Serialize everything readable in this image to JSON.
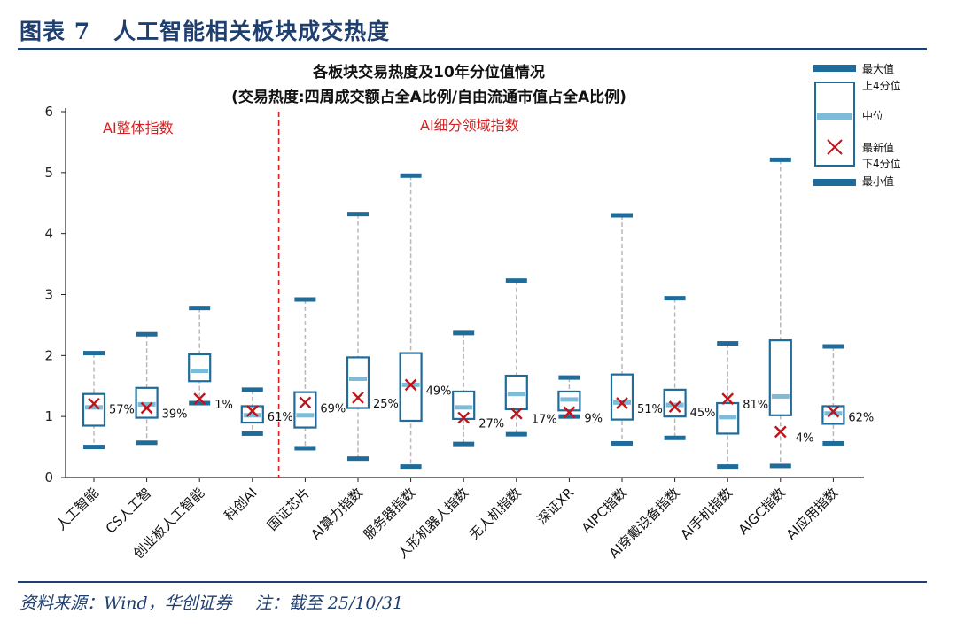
{
  "figure_title": "图表 7　人工智能相关板块成交热度",
  "source": "资料来源：Wind，华创证券",
  "note": "注：截至 25/10/31",
  "colors": {
    "header": "#1f3f70",
    "box": "#1f6b99",
    "whisker": "#b8b8b8",
    "median": "#7dbbd8",
    "marker": "#c0141c",
    "divider": "#d81e1e",
    "section_label": "#d81e1e"
  },
  "chart_data": {
    "type": "boxplot",
    "title_line1": "各板块交易热度及10年分位值情况",
    "title_line2": "(交易热度:四周成交额占全A比例/自由流通市值占全A比例)",
    "ylim": [
      0,
      6
    ],
    "yticks": [
      0,
      1,
      2,
      3,
      4,
      5,
      6
    ],
    "section_labels": [
      "AI整体指数",
      "AI细分领域指数"
    ],
    "divider_after_index": 3,
    "legend": {
      "max": "最大值",
      "q3": "上4分位",
      "median": "中位",
      "latest": "最新值",
      "q1": "下4分位",
      "min": "最小值"
    },
    "categories": [
      "人工智能",
      "CS人工智",
      "创业板人工智能",
      "科创AI",
      "国证芯片",
      "AI算力指数",
      "服务器指数",
      "人形机器人指数",
      "无人机指数",
      "深证XR",
      "AIPC指数",
      "AI穿戴设备指数",
      "AI手机指数",
      "AIGC指数",
      "AI应用指数"
    ],
    "min": [
      0.5,
      0.57,
      1.22,
      0.72,
      0.48,
      0.31,
      0.18,
      0.55,
      0.71,
      1.0,
      0.56,
      0.65,
      0.18,
      0.19,
      0.56
    ],
    "q1": [
      0.85,
      0.98,
      1.58,
      0.9,
      0.82,
      1.14,
      0.93,
      0.96,
      1.12,
      1.1,
      0.95,
      1.0,
      0.72,
      1.02,
      0.88
    ],
    "median": [
      1.15,
      1.2,
      1.75,
      1.02,
      1.02,
      1.62,
      1.52,
      1.15,
      1.37,
      1.28,
      1.23,
      1.19,
      0.99,
      1.33,
      1.05
    ],
    "q3": [
      1.37,
      1.47,
      2.02,
      1.17,
      1.4,
      1.97,
      2.04,
      1.41,
      1.67,
      1.41,
      1.69,
      1.44,
      1.22,
      2.25,
      1.17
    ],
    "max": [
      2.04,
      2.35,
      2.78,
      1.44,
      2.92,
      4.32,
      4.95,
      2.37,
      3.23,
      1.64,
      4.3,
      2.94,
      2.2,
      5.21,
      2.15
    ],
    "latest": [
      1.21,
      1.14,
      1.29,
      1.09,
      1.23,
      1.31,
      1.52,
      0.98,
      1.05,
      1.07,
      1.22,
      1.16,
      1.29,
      0.75,
      1.08
    ],
    "percentile_labels": [
      "57%",
      "39%",
      "1%",
      "61%",
      "69%",
      "25%",
      "49%",
      "27%",
      "17%",
      "9%",
      "51%",
      "45%",
      "81%",
      "4%",
      "62%"
    ]
  }
}
